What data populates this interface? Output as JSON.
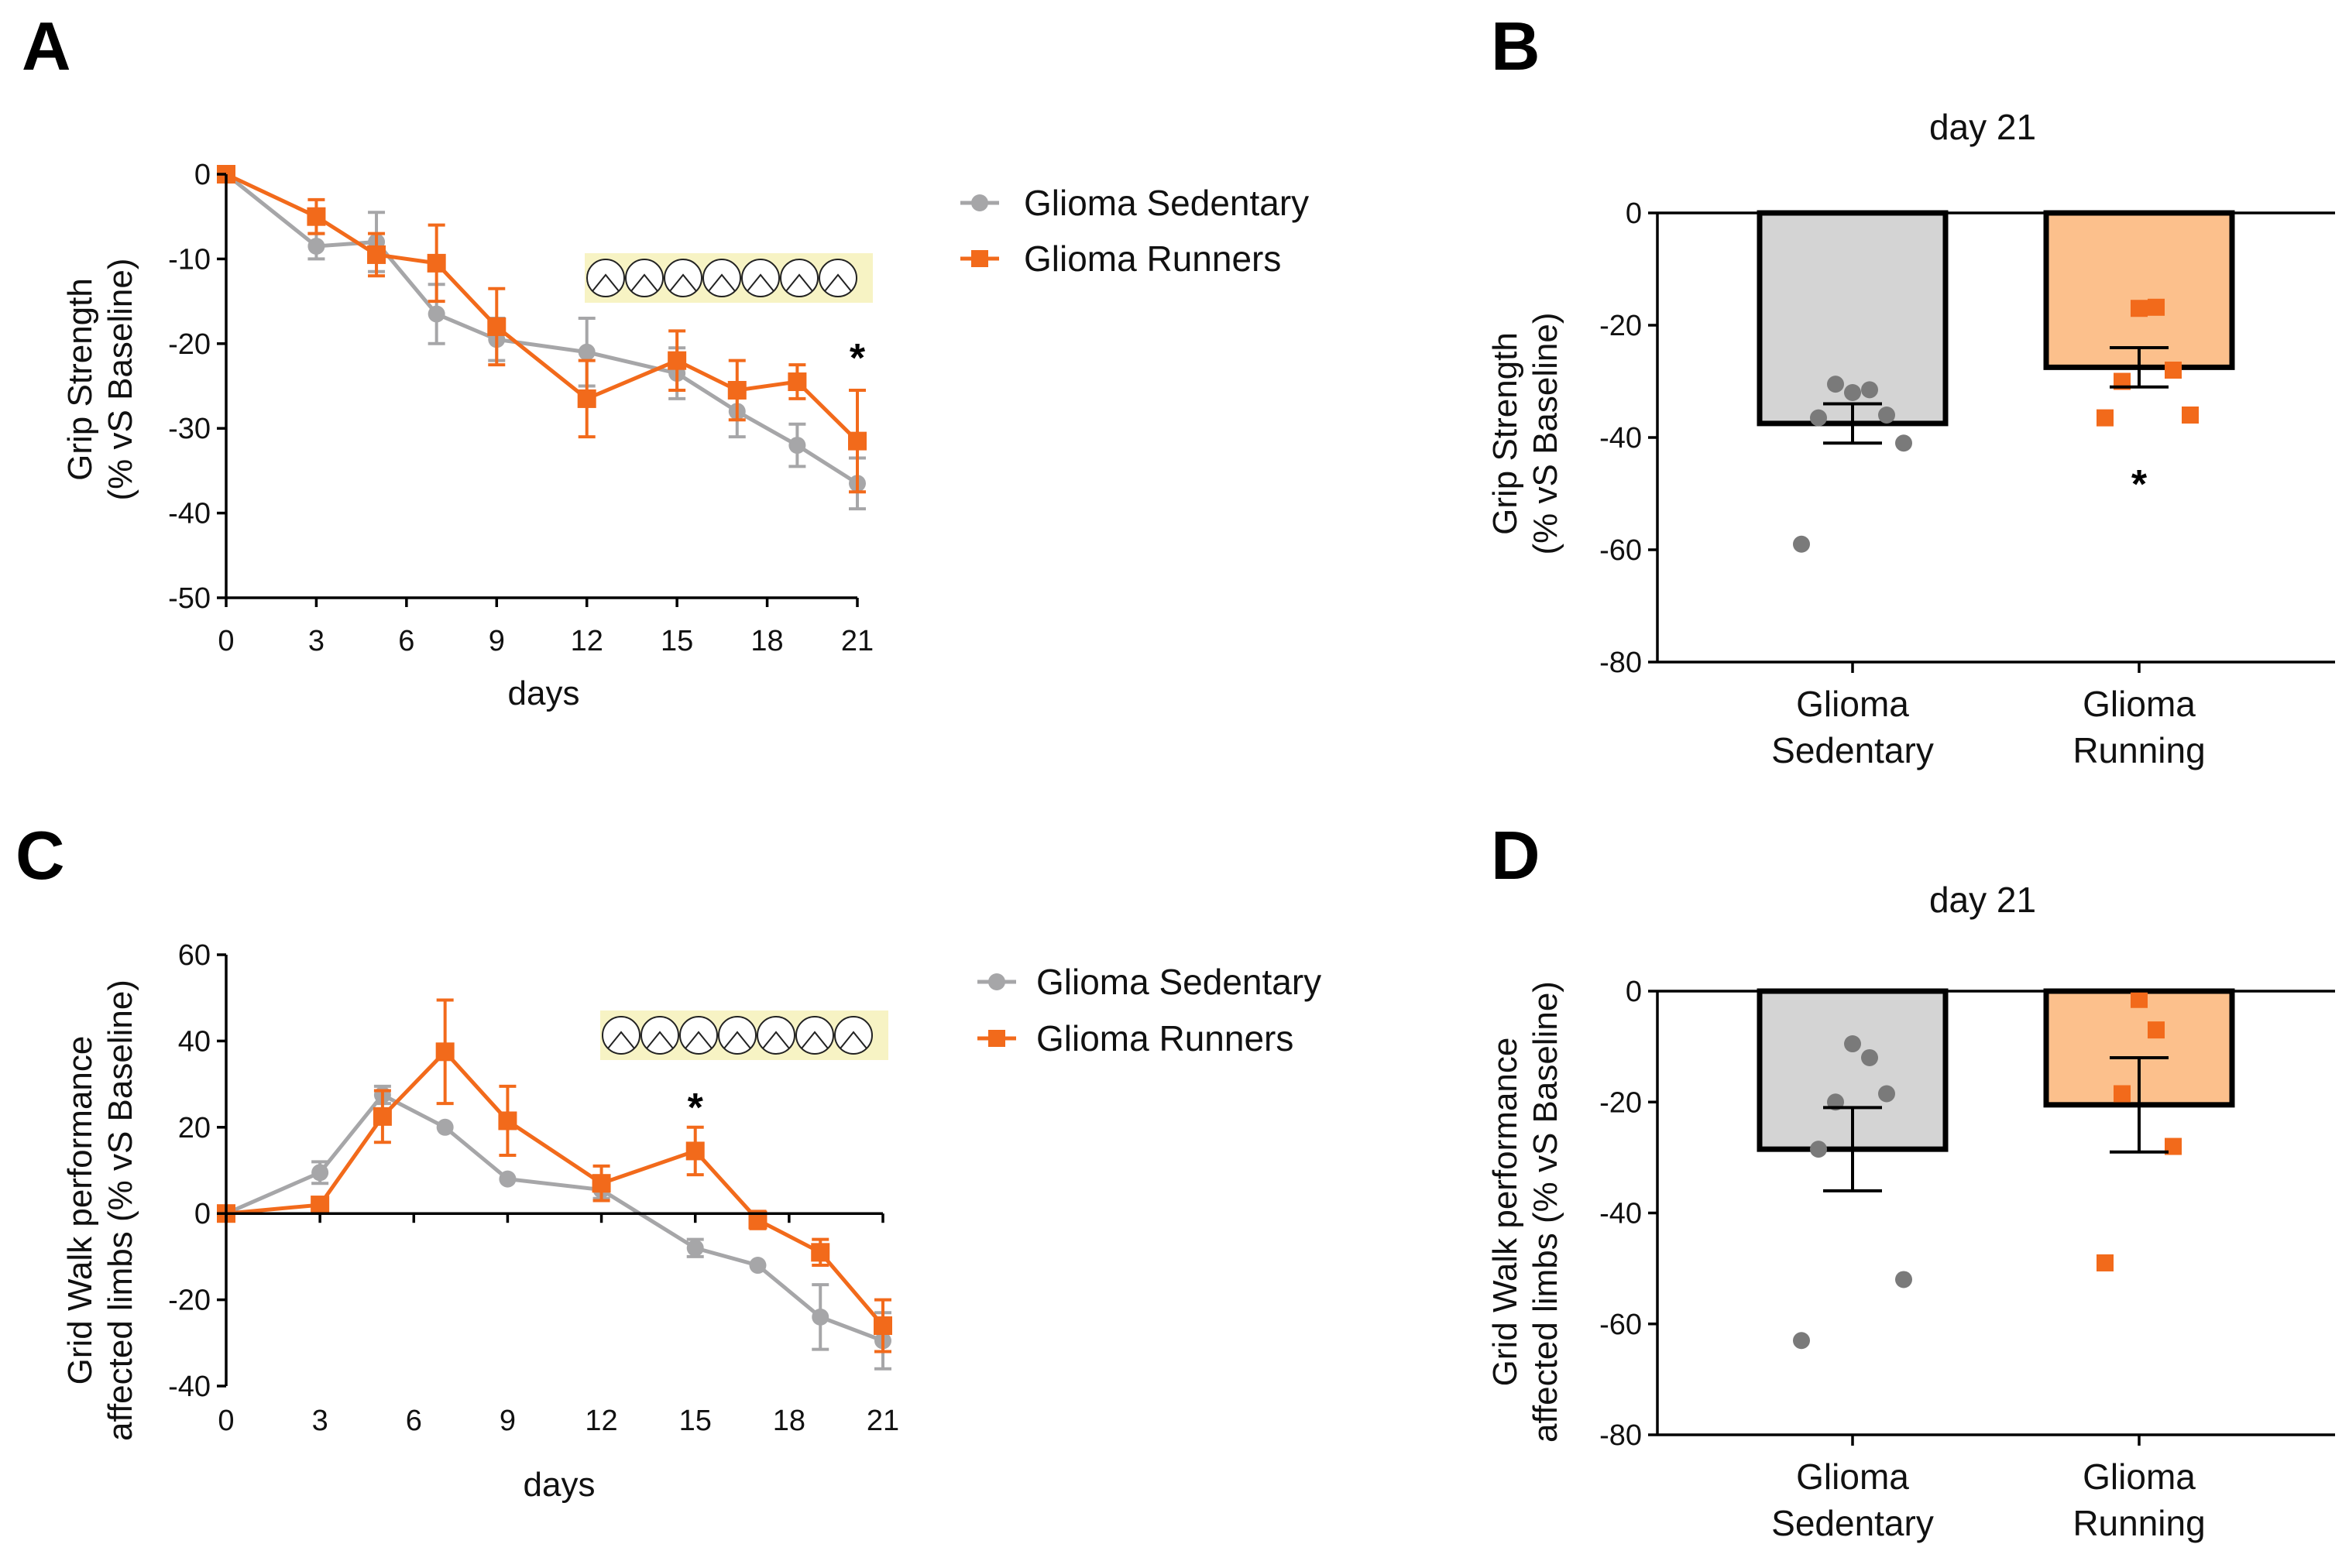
{
  "colors": {
    "sedentary": "#a6a6a8",
    "runners": "#f26a1b",
    "sedentary_fill": "#d4d4d4",
    "runners_fill": "#fcc08c",
    "dots_sedentary": "#7a7a7a",
    "wheel_bg": "#f7f3c4"
  },
  "icons": {
    "running_wheels": "running-wheel-icon"
  },
  "chart_data": [
    {
      "panel": "A",
      "type": "line",
      "title": "",
      "xlabel": "days",
      "ylabel_line1": "Grip Strength",
      "ylabel_line2": "(% vS Baseline)",
      "xlim": [
        0,
        21
      ],
      "ylim": [
        -50,
        0
      ],
      "xticks": [
        0,
        3,
        6,
        9,
        12,
        15,
        18,
        21
      ],
      "yticks": [
        0,
        -10,
        -20,
        -30,
        -40,
        -50
      ],
      "series": [
        {
          "name": "Glioma Sedentary",
          "marker": "circle",
          "x": [
            0,
            3,
            5,
            7,
            9,
            12,
            15,
            17,
            19,
            21
          ],
          "y": [
            0,
            -8.5,
            -8,
            -16.5,
            -19.5,
            -21,
            -23.5,
            -28,
            -32,
            -36.5
          ],
          "err": [
            0,
            1.5,
            3.5,
            3.5,
            2.5,
            4,
            3,
            3,
            2.5,
            3
          ]
        },
        {
          "name": "Glioma Runners",
          "marker": "square",
          "x": [
            0,
            3,
            5,
            7,
            9,
            12,
            15,
            17,
            19,
            21
          ],
          "y": [
            0,
            -5,
            -9.5,
            -10.5,
            -18,
            -26.5,
            -22,
            -25.5,
            -24.5,
            -31.5
          ],
          "err": [
            0,
            2,
            2.5,
            4.5,
            4.5,
            4.5,
            3.5,
            3.5,
            2,
            6
          ]
        }
      ],
      "annotations": [
        {
          "text": "*",
          "x": 21,
          "y": -21.5
        }
      ],
      "wheel_count": 7
    },
    {
      "panel": "B",
      "type": "bar",
      "title": "day 21",
      "ylabel_line1": "Grip Strength",
      "ylabel_line2": "(% vS Baseline)",
      "ylim": [
        -80,
        0
      ],
      "yticks": [
        0,
        -20,
        -40,
        -60,
        -80
      ],
      "categories": [
        "Glioma\nSedentary",
        "Glioma\nRunning"
      ],
      "category_lines": [
        [
          "Glioma",
          "Sedentary"
        ],
        [
          "Glioma",
          "Running"
        ]
      ],
      "values": [
        -37.5,
        -27.5
      ],
      "sem": [
        3.5,
        3.5
      ],
      "points": [
        [
          -32,
          -31.5,
          -30.5,
          -36,
          -36.5,
          -41,
          -59
        ],
        [
          -17,
          -16.8,
          -30,
          -28,
          -36.5,
          -36
        ]
      ],
      "annotations": [
        {
          "text": "*",
          "category": 1,
          "y": -48
        }
      ]
    },
    {
      "panel": "C",
      "type": "line",
      "title": "",
      "xlabel": "days",
      "ylabel_line1": "Grid Walk performance",
      "ylabel_line2": "affected limbs (% vS Baseline)",
      "xlim": [
        0,
        21
      ],
      "ylim": [
        -40,
        60
      ],
      "xticks": [
        0,
        3,
        6,
        9,
        12,
        15,
        18,
        21
      ],
      "yticks": [
        60,
        40,
        20,
        0,
        -20,
        -40
      ],
      "series": [
        {
          "name": "Glioma Sedentary",
          "marker": "circle",
          "x": [
            0,
            3,
            5,
            7,
            9,
            12,
            15,
            17,
            19,
            21
          ],
          "y": [
            0,
            9.5,
            27.5,
            20,
            8,
            5.5,
            -8,
            -12,
            -24,
            -29.5
          ],
          "err": [
            0,
            2.5,
            2,
            0,
            0,
            2,
            2,
            0,
            7.5,
            6.5
          ]
        },
        {
          "name": "Glioma Runners",
          "marker": "square",
          "x": [
            0,
            3,
            5,
            7,
            9,
            12,
            15,
            17,
            19,
            21
          ],
          "y": [
            0,
            2,
            22.5,
            37.5,
            21.5,
            7,
            14.5,
            -1.5,
            -9,
            -26
          ],
          "err": [
            0,
            0,
            6,
            12,
            8,
            4,
            5.5,
            2,
            3,
            6
          ]
        }
      ],
      "annotations": [
        {
          "text": "*",
          "x": 15,
          "y": 25
        }
      ],
      "wheel_count": 7
    },
    {
      "panel": "D",
      "type": "bar",
      "title": "day 21",
      "ylabel_line1": "Grid Walk performance",
      "ylabel_line2": "affected limbs (% vS Baseline)",
      "ylim": [
        -80,
        0
      ],
      "yticks": [
        0,
        -20,
        -40,
        -60,
        -80
      ],
      "categories": [
        "Glioma\nSedentary",
        "Glioma\nRunning"
      ],
      "category_lines": [
        [
          "Glioma",
          "Sedentary"
        ],
        [
          "Glioma",
          "Running"
        ]
      ],
      "values": [
        -28.5,
        -20.5
      ],
      "sem": [
        7.5,
        8.5
      ],
      "points": [
        [
          -9.5,
          -12,
          -20,
          -18.5,
          -28.5,
          -52,
          -63
        ],
        [
          -1.5,
          -7,
          -18.5,
          -28,
          -49
        ]
      ],
      "annotations": []
    }
  ]
}
